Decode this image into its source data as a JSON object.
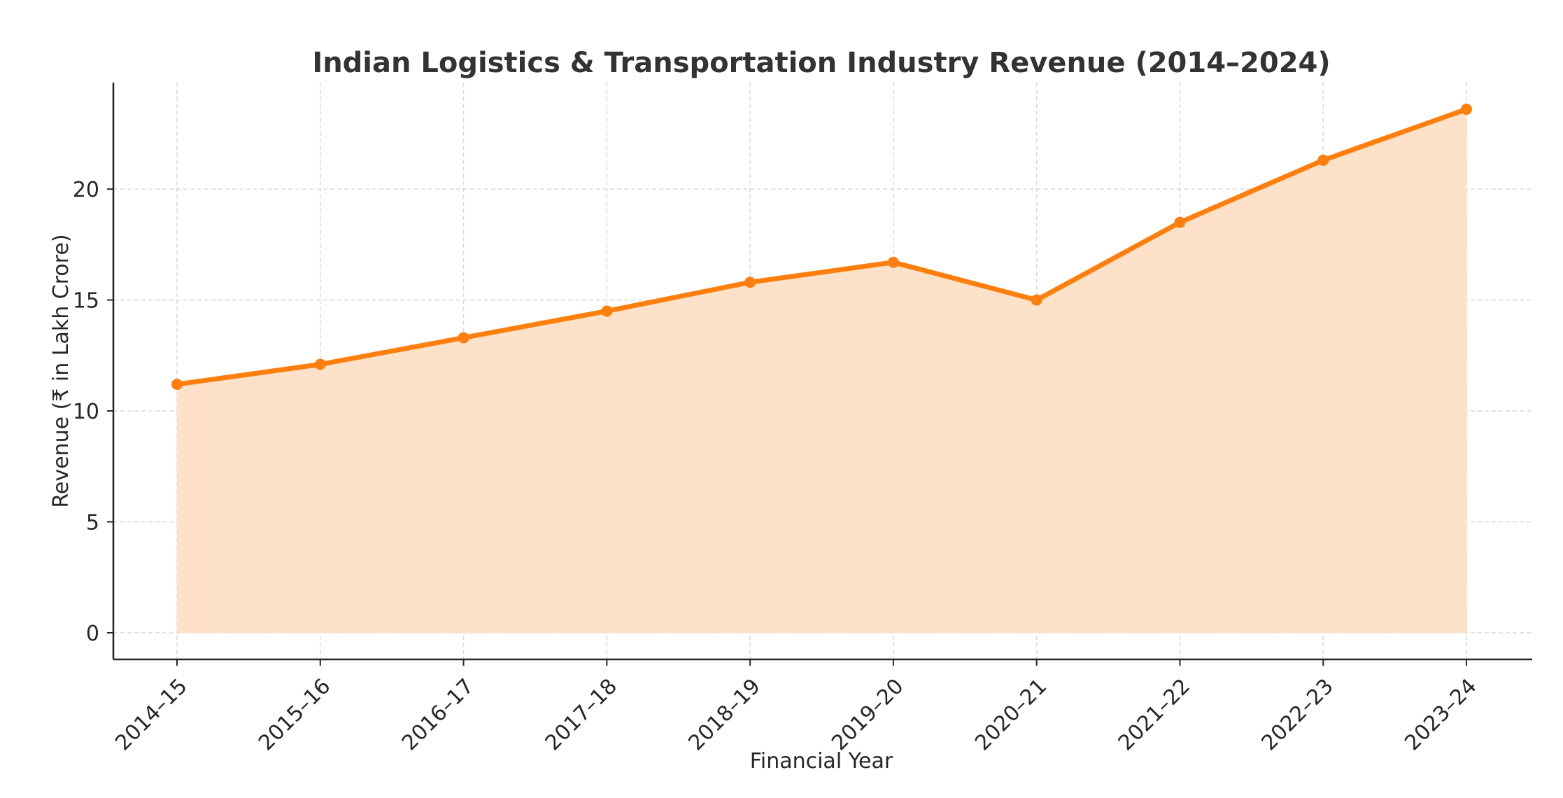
{
  "chart_data": {
    "type": "area",
    "title": "Indian Logistics & Transportation Industry Revenue (2014–2024)",
    "xlabel": "Financial Year",
    "ylabel": "Revenue (₹ in Lakh Crore)",
    "categories": [
      "2014–15",
      "2015–16",
      "2016–17",
      "2017–18",
      "2018–19",
      "2019–20",
      "2020–21",
      "2021–22",
      "2022–23",
      "2023–24"
    ],
    "series": [
      {
        "name": "Revenue",
        "values": [
          11.2,
          12.1,
          13.3,
          14.5,
          15.8,
          16.7,
          15.0,
          18.5,
          21.3,
          23.6
        ]
      }
    ],
    "ylim": [
      -1.2,
      24.8
    ],
    "yticks": [
      0,
      5,
      10,
      15,
      20
    ],
    "ytick_labels": [
      "0",
      "5",
      "10",
      "15",
      "20"
    ],
    "grid": true,
    "legend": "none"
  },
  "colors": {
    "line": "#ff7f0e",
    "fill": "#fde2c9",
    "grid": "#d9d9d9",
    "axis": "#262626",
    "text": "#262626",
    "title": "#333333"
  }
}
